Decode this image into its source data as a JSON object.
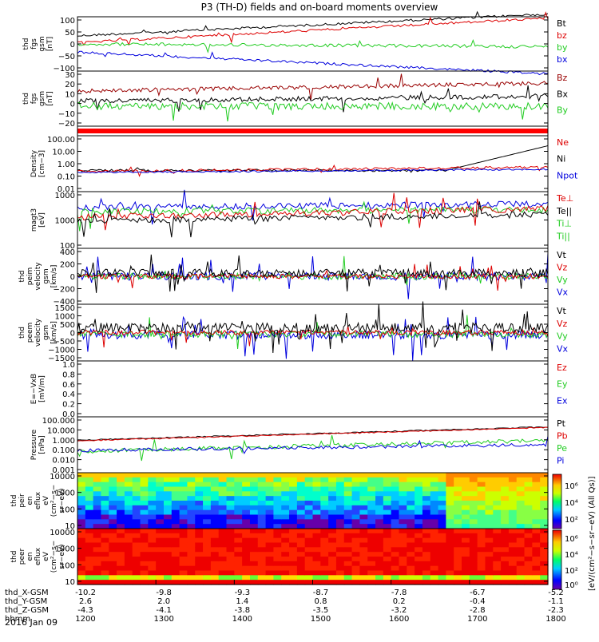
{
  "title": "P3 (TH-D) fields and on-board moments overview",
  "date_label": "2016 Jan 09",
  "chart_data": {
    "type": "line",
    "x_ticks_time": [
      "1200",
      "1300",
      "1400",
      "1500",
      "1600",
      "1700",
      "1800"
    ],
    "time_range": [
      1200,
      1800
    ],
    "ephemeris": [
      {
        "label": "thd_X-GSM",
        "values": [
          "-10.2",
          "-9.8",
          "-9.3",
          "-8.7",
          "-7.8",
          "-6.7",
          "-5.2"
        ]
      },
      {
        "label": "thd_Y-GSM",
        "values": [
          "2.6",
          "2.0",
          "1.4",
          "0.8",
          "0.2",
          "-0.4",
          "-1.1"
        ]
      },
      {
        "label": "thd_Z-GSM",
        "values": [
          "-4.3",
          "-4.1",
          "-3.8",
          "-3.5",
          "-3.2",
          "-2.8",
          "-2.3"
        ]
      },
      {
        "label": "hhmm",
        "values": [
          "1200",
          "1300",
          "1400",
          "1500",
          "1600",
          "1700",
          "1800"
        ]
      }
    ],
    "panels": [
      {
        "id": "fgs",
        "ylabel": [
          "thd",
          "fgs",
          "gsm",
          "[nT]"
        ],
        "yticks": [
          "100",
          "50",
          "0",
          "−50",
          "−100"
        ],
        "ylim": [
          -100,
          100
        ],
        "legend": [
          {
            "name": "Bt",
            "color": "#000000"
          },
          {
            "name": "bz",
            "color": "#dd0000"
          },
          {
            "name": "by",
            "color": "#22cc22"
          },
          {
            "name": "bx",
            "color": "#0000dd"
          }
        ]
      },
      {
        "id": "fgs2",
        "ylabel": [
          "thd",
          "fgs",
          "gsm",
          "[nT]"
        ],
        "yticks": [
          "30",
          "20",
          "10",
          "0",
          "−10",
          "−20"
        ],
        "ylim": [
          -25,
          30
        ],
        "legend": [
          {
            "name": "Bz",
            "color": "#990000"
          },
          {
            "name": "Bx",
            "color": "#000000"
          },
          {
            "name": "By",
            "color": "#22cc22"
          }
        ]
      },
      {
        "id": "flag",
        "ylabel": [],
        "yticks": [],
        "legend": []
      },
      {
        "id": "density",
        "ylabel": [
          "Density",
          "[cm−3]"
        ],
        "yticks": [
          "100.00",
          "10.00",
          "1.00",
          "0.10",
          "0.01"
        ],
        "log": true,
        "legend": [
          {
            "name": "Ne",
            "color": "#dd0000"
          },
          {
            "name": "Ni",
            "color": "#000000"
          },
          {
            "name": "Npot",
            "color": "#0000dd"
          }
        ]
      },
      {
        "id": "temp",
        "ylabel": [
          "magt3",
          "[eV]"
        ],
        "yticks": [
          "1000",
          "1000",
          "100"
        ],
        "log": true,
        "legend": [
          {
            "name": "Te⊥",
            "color": "#dd0000"
          },
          {
            "name": "Te||",
            "color": "#000000"
          },
          {
            "name": "Ti⊥",
            "color": "#22cc22"
          },
          {
            "name": "Ti||",
            "color": "#22cc22"
          }
        ]
      },
      {
        "id": "peim",
        "ylabel": [
          "thd",
          "peim",
          "velocity",
          "gsm",
          "[km/s]"
        ],
        "yticks": [
          "400",
          "200",
          "0",
          "−200",
          "−400"
        ],
        "ylim": [
          -400,
          400
        ],
        "legend": [
          {
            "name": "Vt",
            "color": "#000000"
          },
          {
            "name": "Vz",
            "color": "#dd0000"
          },
          {
            "name": "Vy",
            "color": "#22cc22"
          },
          {
            "name": "Vx",
            "color": "#0000dd"
          }
        ]
      },
      {
        "id": "peem",
        "ylabel": [
          "thd",
          "peem",
          "velocity",
          "gsm",
          "[km/s]"
        ],
        "yticks": [
          "1500",
          "1000",
          "500",
          "0",
          "−500",
          "−1000",
          "−1500"
        ],
        "ylim": [
          -1500,
          1500
        ],
        "legend": [
          {
            "name": "Vt",
            "color": "#000000"
          },
          {
            "name": "Vz",
            "color": "#dd0000"
          },
          {
            "name": "Vy",
            "color": "#22cc22"
          },
          {
            "name": "Vx",
            "color": "#0000dd"
          }
        ]
      },
      {
        "id": "efield",
        "ylabel": [
          "E=−VxB",
          "[mV/m]"
        ],
        "yticks": [
          "1.0",
          "0.8",
          "0.6",
          "0.4",
          "0.2",
          "0.0"
        ],
        "ylim": [
          0,
          1
        ],
        "legend": [
          {
            "name": "Ez",
            "color": "#dd0000"
          },
          {
            "name": "Ey",
            "color": "#22cc22"
          },
          {
            "name": "Ex",
            "color": "#0000dd"
          }
        ]
      },
      {
        "id": "pressure",
        "ylabel": [
          "Pressure",
          "[nPa]"
        ],
        "yticks": [
          "100.000",
          "10.000",
          "1.000",
          "0.100",
          "0.010",
          "0.001"
        ],
        "log": true,
        "legend": [
          {
            "name": "Pt",
            "color": "#000000"
          },
          {
            "name": "Pb",
            "color": "#dd0000"
          },
          {
            "name": "Pe",
            "color": "#22cc22"
          },
          {
            "name": "Pi",
            "color": "#0000dd"
          }
        ]
      },
      {
        "id": "peir",
        "ylabel": [
          "thd",
          "peir",
          "en",
          "eflux",
          "eV",
          "(cm²−s−",
          "sr−eV)"
        ],
        "yticks": [
          "10000",
          "1000",
          "100",
          "10"
        ],
        "log": true,
        "legend": []
      },
      {
        "id": "peer",
        "ylabel": [
          "thd",
          "peer",
          "en",
          "eflux",
          "eV",
          "(cm²−s−",
          "sr−eV)"
        ],
        "yticks": [
          "10000",
          "1000",
          "100",
          "10"
        ],
        "log": true,
        "legend": []
      }
    ],
    "colorbar": {
      "label": "[eV/(cm²−s−sr−eV) (All Qs)]",
      "ticks_upper": [
        "10⁶",
        "10⁴",
        "10²"
      ],
      "ticks_lower": [
        "10⁶",
        "10⁴",
        "10²",
        "10⁰"
      ]
    }
  }
}
